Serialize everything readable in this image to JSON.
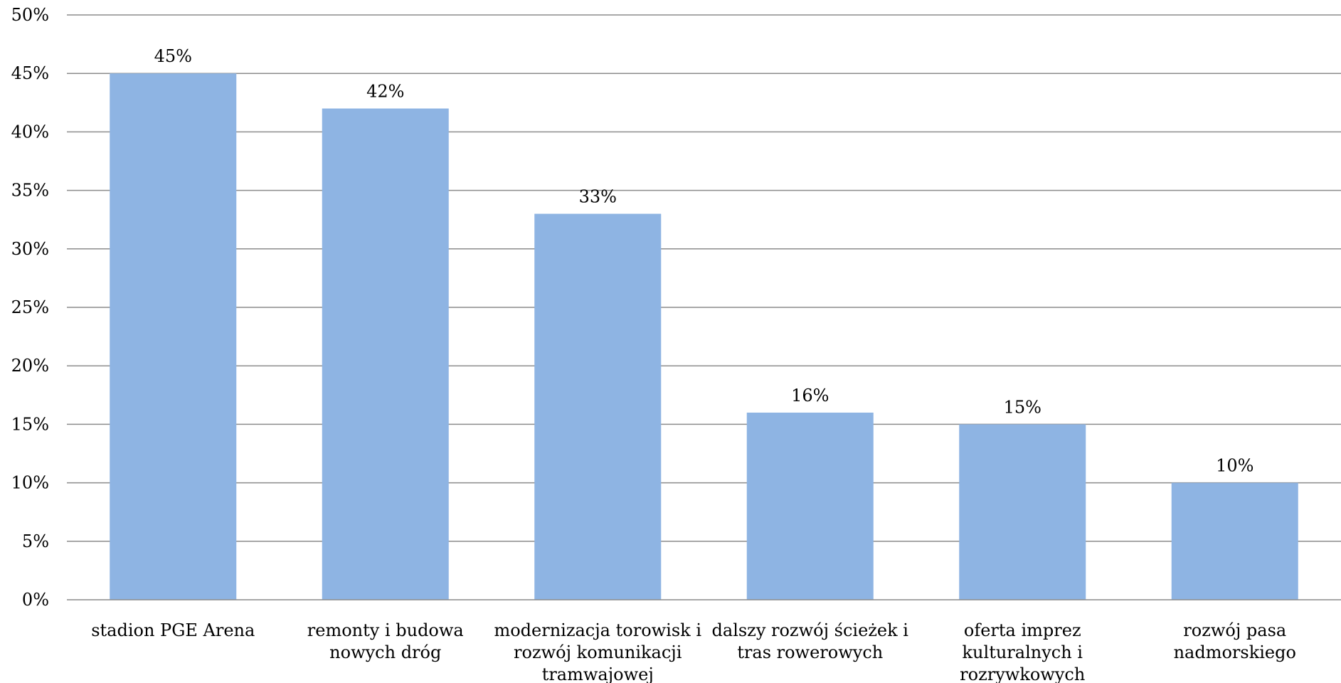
{
  "chart_data": {
    "type": "bar",
    "categories": [
      [
        "stadion PGE Arena"
      ],
      [
        "remonty i budowa",
        "nowych dróg"
      ],
      [
        "modernizacja torowisk i",
        "rozwój komunikacji",
        "tramwajowej"
      ],
      [
        "dalszy rozwój ścieżek i",
        "tras rowerowych"
      ],
      [
        "oferta imprez",
        "kulturalnych i",
        "rozrywkowych"
      ],
      [
        "rozwój pasa",
        "nadmorskiego"
      ]
    ],
    "values": [
      45,
      42,
      33,
      16,
      15,
      10
    ],
    "data_labels": [
      "45%",
      "42%",
      "33%",
      "16%",
      "15%",
      "10%"
    ],
    "ylim": [
      0,
      50
    ],
    "y_ticks": [
      0,
      5,
      10,
      15,
      20,
      25,
      30,
      35,
      40,
      45,
      50
    ],
    "y_tick_labels": [
      "0%",
      "5%",
      "10%",
      "15%",
      "20%",
      "25%",
      "30%",
      "35%",
      "40%",
      "45%",
      "50%"
    ],
    "title": "",
    "xlabel": "",
    "ylabel": "",
    "grid": true,
    "legend": "none",
    "colors": {
      "bar": "#8eb4e3",
      "grid": "#8c8c8c",
      "text": "#000000"
    }
  }
}
